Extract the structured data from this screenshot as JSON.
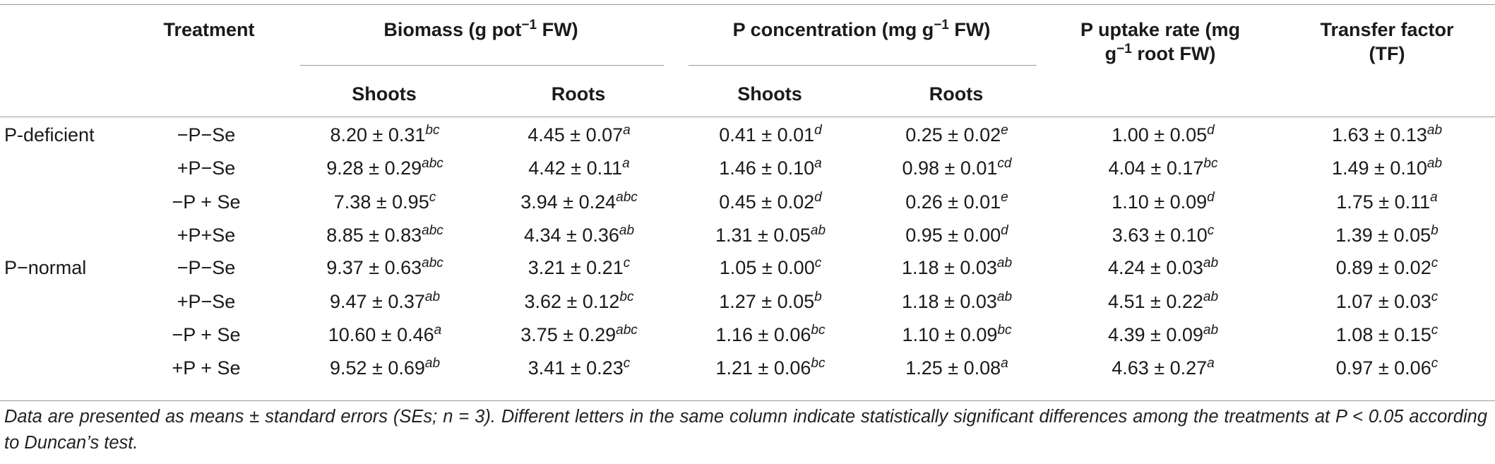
{
  "headers": {
    "treatment": "Treatment",
    "biomass": "Biomass (g pot",
    "biomass_sup": "−1",
    "biomass_end": " FW)",
    "pconc": "P concentration (mg g",
    "pconc_sup": "−1",
    "pconc_end": " FW)",
    "uptake_line1": "P uptake rate (mg",
    "uptake_line2": "g",
    "uptake_line2_sup": "−1",
    "uptake_line2_end": " root FW)",
    "tf_line1": "Transfer factor",
    "tf_line2": "(TF)",
    "shoots": "Shoots",
    "roots": "Roots"
  },
  "rows": [
    {
      "group": "P-deficient",
      "treatment": "−P−Se",
      "bs": "8.20 ± 0.31",
      "bs_l": "bc",
      "br": "4.45 ± 0.07",
      "br_l": "a",
      "ps": "0.41 ± 0.01",
      "ps_l": "d",
      "pr": "0.25 ± 0.02",
      "pr_l": "e",
      "up": "1.00 ± 0.05",
      "up_l": "d",
      "tf": "1.63 ± 0.13",
      "tf_l": "ab"
    },
    {
      "group": "",
      "treatment": "+P−Se",
      "bs": "9.28 ± 0.29",
      "bs_l": "abc",
      "br": "4.42 ± 0.11",
      "br_l": "a",
      "ps": "1.46 ± 0.10",
      "ps_l": "a",
      "pr": "0.98 ± 0.01",
      "pr_l": "cd",
      "up": "4.04 ± 0.17",
      "up_l": "bc",
      "tf": "1.49 ± 0.10",
      "tf_l": "ab"
    },
    {
      "group": "",
      "treatment": "−P + Se",
      "bs": "7.38 ± 0.95",
      "bs_l": "c",
      "br": "3.94 ± 0.24",
      "br_l": "abc",
      "ps": "0.45 ± 0.02",
      "ps_l": "d",
      "pr": "0.26 ± 0.01",
      "pr_l": "e",
      "up": "1.10 ± 0.09",
      "up_l": "d",
      "tf": "1.75 ± 0.11",
      "tf_l": "a"
    },
    {
      "group": "",
      "treatment": "+P+Se",
      "bs": "8.85 ± 0.83",
      "bs_l": "abc",
      "br": "4.34 ± 0.36",
      "br_l": "ab",
      "ps": "1.31 ± 0.05",
      "ps_l": "ab",
      "pr": "0.95 ± 0.00",
      "pr_l": "d",
      "up": "3.63 ± 0.10",
      "up_l": "c",
      "tf": "1.39 ± 0.05",
      "tf_l": "b"
    },
    {
      "group": "P−normal",
      "treatment": "−P−Se",
      "bs": "9.37 ± 0.63",
      "bs_l": "abc",
      "br": "3.21 ± 0.21",
      "br_l": "c",
      "ps": "1.05 ± 0.00",
      "ps_l": "c",
      "pr": "1.18 ± 0.03",
      "pr_l": "ab",
      "up": "4.24 ± 0.03",
      "up_l": "ab",
      "tf": "0.89 ± 0.02",
      "tf_l": "c"
    },
    {
      "group": "",
      "treatment": "+P−Se",
      "bs": "9.47 ± 0.37",
      "bs_l": "ab",
      "br": "3.62 ± 0.12",
      "br_l": "bc",
      "ps": "1.27 ± 0.05",
      "ps_l": "b",
      "pr": "1.18 ± 0.03",
      "pr_l": "ab",
      "up": "4.51 ± 0.22",
      "up_l": "ab",
      "tf": "1.07 ± 0.03",
      "tf_l": "c"
    },
    {
      "group": "",
      "treatment": "−P + Se",
      "bs": "10.60 ± 0.46",
      "bs_l": "a",
      "br": "3.75 ± 0.29",
      "br_l": "abc",
      "ps": "1.16 ± 0.06",
      "ps_l": "bc",
      "pr": "1.10 ± 0.09",
      "pr_l": "bc",
      "up": "4.39 ± 0.09",
      "up_l": "ab",
      "tf": "1.08 ± 0.15",
      "tf_l": "c"
    },
    {
      "group": "",
      "treatment": "+P + Se",
      "bs": "9.52 ± 0.69",
      "bs_l": "ab",
      "br": "3.41 ± 0.23",
      "br_l": "c",
      "ps": "1.21 ± 0.06",
      "ps_l": "bc",
      "pr": "1.25 ± 0.08",
      "pr_l": "a",
      "up": "4.63 ± 0.27",
      "up_l": "a",
      "tf": "0.97 ± 0.06",
      "tf_l": "c"
    }
  ],
  "footnote": "Data are presented as means ± standard errors (SEs; n = 3). Different letters in the same column indicate statistically significant differences among the treatments at P < 0.05 according to Duncan’s test."
}
